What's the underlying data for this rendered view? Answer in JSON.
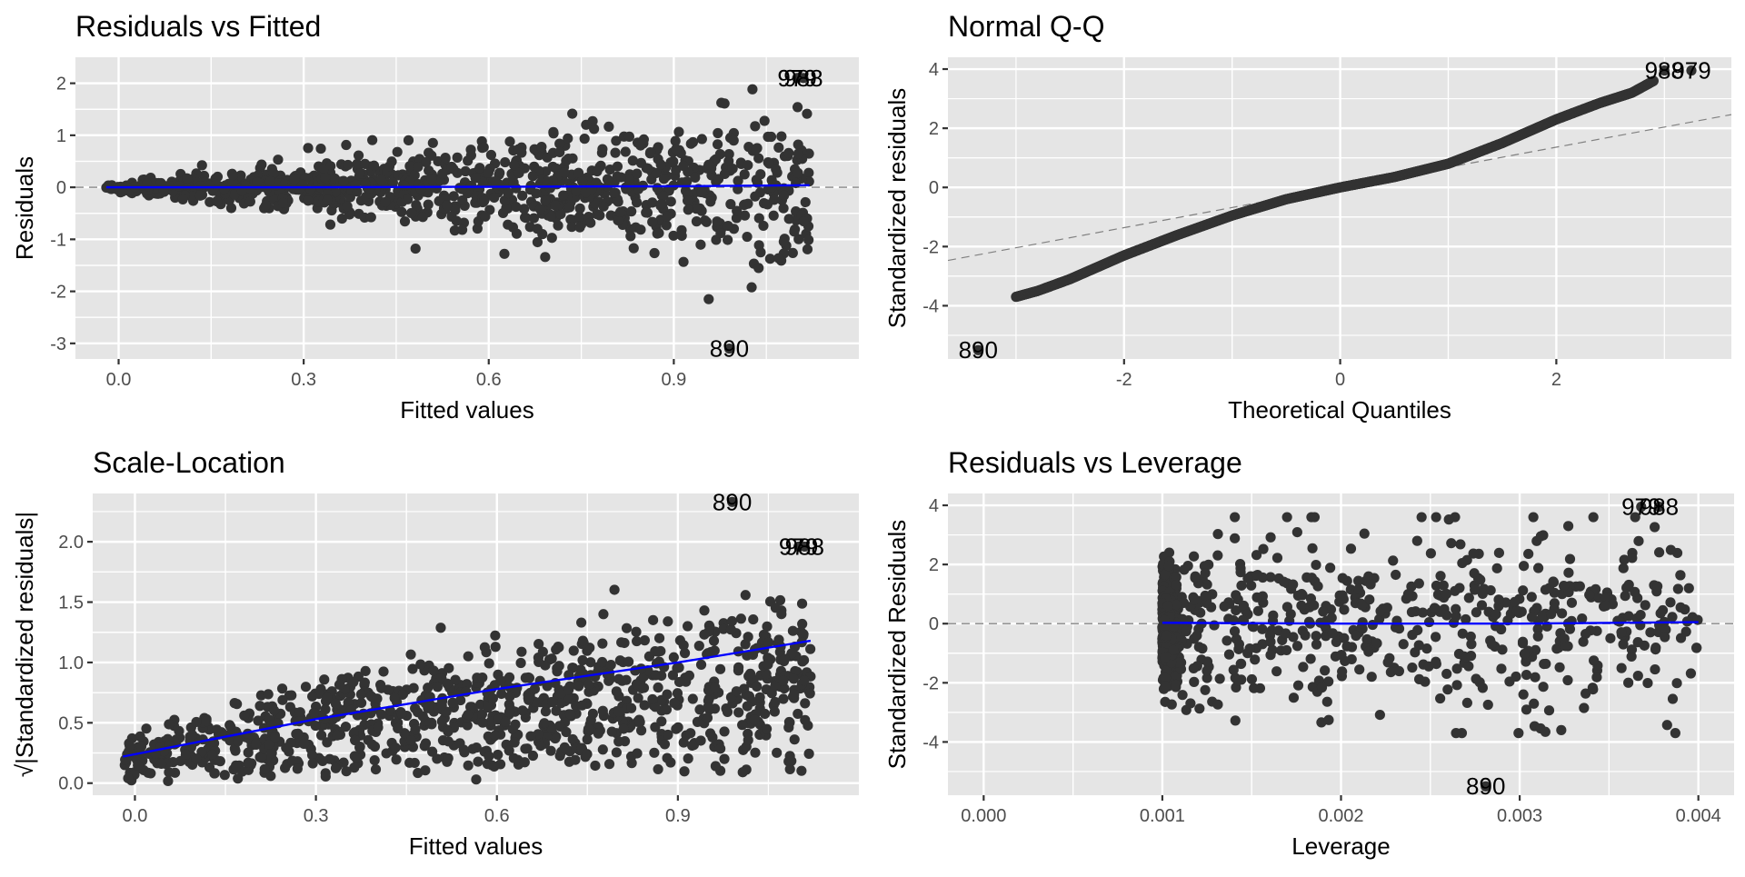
{
  "colors": {
    "panel_bg": "#e5e5e5",
    "grid_major": "#ffffff",
    "point": "#333333",
    "smooth": "#0000ff",
    "refline": "#808080",
    "tick": "#333333"
  },
  "chart_data": [
    {
      "id": "residuals-vs-fitted",
      "type": "scatter",
      "title": "Residuals vs Fitted",
      "xlabel": "Fitted values",
      "ylabel": "Residuals",
      "xlim": [
        -0.07,
        1.2
      ],
      "ylim": [
        -3.3,
        2.5
      ],
      "xticks": [
        0.0,
        0.3,
        0.6,
        0.9
      ],
      "xtick_labels": [
        "0.0",
        "0.3",
        "0.6",
        "0.9"
      ],
      "yticks": [
        -3,
        -2,
        -1,
        0,
        1,
        2
      ],
      "ytick_labels": [
        "-3",
        "-2",
        "-1",
        "0",
        "1",
        "2"
      ],
      "grid": true,
      "reference_line": {
        "type": "hline",
        "y": 0,
        "style": "dashed"
      },
      "smooth_line": {
        "x": [
          -0.02,
          0.3,
          0.6,
          0.9,
          1.12
        ],
        "y": [
          0.0,
          0.0,
          0.01,
          0.02,
          0.04
        ]
      },
      "points_summary": {
        "n": 1000,
        "x_range": [
          -0.02,
          1.12
        ],
        "pattern": "fan-shaped: residual spread grows with fitted value"
      },
      "labelled_points": [
        {
          "label": "979",
          "x": 1.1,
          "y": 2.1
        },
        {
          "label": "988",
          "x": 1.11,
          "y": 2.1
        },
        {
          "label": "890",
          "x": 0.99,
          "y": -3.1
        }
      ]
    },
    {
      "id": "normal-qq",
      "type": "scatter",
      "title": "Normal Q-Q",
      "xlabel": "Theoretical Quantiles",
      "ylabel": "Standardized residuals",
      "xlim": [
        -3.63,
        3.62
      ],
      "ylim": [
        -5.8,
        4.4
      ],
      "xticks": [
        -2,
        0,
        2
      ],
      "xtick_labels": [
        "-2",
        "0",
        "2"
      ],
      "yticks": [
        -4,
        -2,
        0,
        2,
        4
      ],
      "ytick_labels": [
        "-4",
        "-2",
        "0",
        "2",
        "4"
      ],
      "grid": true,
      "reference_line": {
        "type": "abline",
        "intercept": 0,
        "slope": 0.68,
        "style": "dashed"
      },
      "qq_curve": {
        "x": [
          -3.0,
          -2.8,
          -2.5,
          -2.0,
          -1.5,
          -1.0,
          -0.5,
          0.0,
          0.5,
          1.0,
          1.5,
          2.0,
          2.4,
          2.7,
          2.9
        ],
        "y": [
          -3.7,
          -3.5,
          -3.1,
          -2.3,
          -1.6,
          -0.95,
          -0.4,
          0.0,
          0.35,
          0.8,
          1.5,
          2.3,
          2.85,
          3.2,
          3.6
        ]
      },
      "points_summary": {
        "n": 1000
      },
      "labelled_points": [
        {
          "label": "988",
          "x": 3.0,
          "y": 3.95
        },
        {
          "label": "979",
          "x": 3.25,
          "y": 3.95
        },
        {
          "label": "890",
          "x": -3.35,
          "y": -5.5
        }
      ]
    },
    {
      "id": "scale-location",
      "type": "scatter",
      "title": "Scale-Location",
      "xlabel": "Fitted values",
      "ylabel": "√|Standardized residuals|",
      "xlim": [
        -0.07,
        1.2
      ],
      "ylim": [
        -0.1,
        2.4
      ],
      "xticks": [
        0.0,
        0.3,
        0.6,
        0.9
      ],
      "xtick_labels": [
        "0.0",
        "0.3",
        "0.6",
        "0.9"
      ],
      "yticks": [
        0.0,
        0.5,
        1.0,
        1.5,
        2.0
      ],
      "ytick_labels": [
        "0.0",
        "0.5",
        "1.0",
        "1.5",
        "2.0"
      ],
      "grid": true,
      "smooth_line": {
        "x": [
          -0.02,
          0.3,
          0.6,
          0.9,
          1.12
        ],
        "y": [
          0.22,
          0.53,
          0.78,
          1.0,
          1.18
        ]
      },
      "points_summary": {
        "n": 1000,
        "x_range": [
          -0.02,
          1.12
        ],
        "pattern": "increasing spread with fitted value"
      },
      "labelled_points": [
        {
          "label": "890",
          "x": 0.99,
          "y": 2.33
        },
        {
          "label": "979",
          "x": 1.1,
          "y": 1.96
        },
        {
          "label": "988",
          "x": 1.11,
          "y": 1.96
        }
      ]
    },
    {
      "id": "residuals-vs-leverage",
      "type": "scatter",
      "title": "Residuals vs Leverage",
      "xlabel": "Leverage",
      "ylabel": "Standardized Residuals",
      "xlim": [
        -0.0002,
        0.0042
      ],
      "ylim": [
        -5.8,
        4.4
      ],
      "xticks": [
        0.0,
        0.001,
        0.002,
        0.003,
        0.004
      ],
      "xtick_labels": [
        "0.000",
        "0.001",
        "0.002",
        "0.003",
        "0.004"
      ],
      "yticks": [
        -4,
        -2,
        0,
        2,
        4
      ],
      "ytick_labels": [
        "-4",
        "-2",
        "0",
        "2",
        "4"
      ],
      "grid": true,
      "reference_line": {
        "type": "hline",
        "y": 0,
        "style": "dashed"
      },
      "smooth_line": {
        "x": [
          0.001,
          0.002,
          0.003,
          0.004
        ],
        "y": [
          0.03,
          0.0,
          0.0,
          0.05
        ]
      },
      "points_summary": {
        "n": 1000,
        "x_range": [
          0.001,
          0.004
        ],
        "pattern": "dense band at leverage 0.001, spreading to 0.004"
      },
      "labelled_points": [
        {
          "label": "979",
          "x": 0.00368,
          "y": 3.95
        },
        {
          "label": "988",
          "x": 0.00378,
          "y": 3.95
        },
        {
          "label": "890",
          "x": 0.00281,
          "y": -5.5
        }
      ]
    }
  ]
}
